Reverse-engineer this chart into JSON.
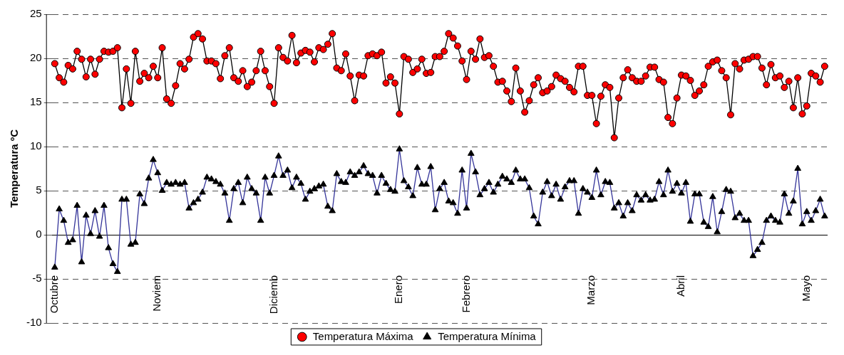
{
  "chart_data": {
    "type": "line",
    "ylabel": "Temperatura ºC",
    "categories": [
      "Octubre",
      null,
      null,
      null,
      null,
      null,
      null,
      null,
      null,
      null,
      null,
      null,
      null,
      null,
      null,
      null,
      null,
      null,
      null,
      null,
      null,
      null,
      null,
      "Noviem",
      null,
      null,
      null,
      null,
      null,
      null,
      null,
      null,
      null,
      null,
      null,
      null,
      null,
      null,
      null,
      null,
      null,
      null,
      null,
      null,
      null,
      null,
      null,
      null,
      null,
      "Diciemb",
      null,
      null,
      null,
      null,
      null,
      null,
      null,
      null,
      null,
      null,
      null,
      null,
      null,
      null,
      null,
      null,
      null,
      null,
      null,
      null,
      null,
      null,
      null,
      null,
      null,
      null,
      null,
      "Enero",
      null,
      null,
      null,
      null,
      null,
      null,
      null,
      null,
      null,
      null,
      null,
      null,
      null,
      null,
      "Febrero",
      null,
      null,
      null,
      null,
      null,
      null,
      null,
      null,
      null,
      null,
      null,
      null,
      null,
      null,
      null,
      null,
      null,
      null,
      null,
      null,
      null,
      null,
      null,
      null,
      null,
      null,
      null,
      "Marzo",
      null,
      null,
      null,
      null,
      null,
      null,
      null,
      null,
      null,
      null,
      null,
      null,
      null,
      null,
      null,
      null,
      null,
      null,
      null,
      "Abril",
      null,
      null,
      null,
      null,
      null,
      null,
      null,
      null,
      null,
      null,
      null,
      null,
      null,
      null,
      null,
      null,
      null,
      null,
      null,
      null,
      null,
      null,
      null,
      null,
      null,
      null,
      null,
      "Mayo",
      null,
      null,
      null,
      null
    ],
    "series": [
      {
        "name": "Temperatura Máxima",
        "color": "#ff0000",
        "marker": "circle",
        "values": [
          19.4,
          17.8,
          17.3,
          19.2,
          18.8,
          20.8,
          19.9,
          17.9,
          19.9,
          18.2,
          19.9,
          20.8,
          20.7,
          20.8,
          21.2,
          14.4,
          18.8,
          14.9,
          20.8,
          17.4,
          18.3,
          17.8,
          19.1,
          17.8,
          21.2,
          15.4,
          14.9,
          16.9,
          19.4,
          18.8,
          19.9,
          22.4,
          22.8,
          22.2,
          19.7,
          19.7,
          19.4,
          17.7,
          20.3,
          21.2,
          17.8,
          17.4,
          18.6,
          16.8,
          17.3,
          18.6,
          20.8,
          18.6,
          16.8,
          14.9,
          21.2,
          20.1,
          19.7,
          22.6,
          19.5,
          20.6,
          20.9,
          20.7,
          19.6,
          21.2,
          21.0,
          21.6,
          22.8,
          18.9,
          18.6,
          20.5,
          18.0,
          15.2,
          18.1,
          18.0,
          20.3,
          20.5,
          20.3,
          20.7,
          17.2,
          17.9,
          17.2,
          13.7,
          20.2,
          19.9,
          18.4,
          18.8,
          19.9,
          18.3,
          18.4,
          20.2,
          20.2,
          20.8,
          22.8,
          22.3,
          21.4,
          19.7,
          17.6,
          20.8,
          19.9,
          22.2,
          20.1,
          20.3,
          19.1,
          17.3,
          17.4,
          16.3,
          15.1,
          18.9,
          16.3,
          13.9,
          15.2,
          17.0,
          17.8,
          16.1,
          16.3,
          16.8,
          18.1,
          17.7,
          17.4,
          16.7,
          16.2,
          19.1,
          19.1,
          15.8,
          15.8,
          12.6,
          15.7,
          17.0,
          16.7,
          11.0,
          15.5,
          17.8,
          18.7,
          17.8,
          17.4,
          17.4,
          18.0,
          19.0,
          19.0,
          17.6,
          17.3,
          13.3,
          12.6,
          15.5,
          18.1,
          18.0,
          17.5,
          15.8,
          16.3,
          17.0,
          19.1,
          19.6,
          19.8,
          18.6,
          17.8,
          13.6,
          19.4,
          18.8,
          19.8,
          19.9,
          20.2,
          20.2,
          18.9,
          17.0,
          19.3,
          17.8,
          18.0,
          16.7,
          17.4,
          14.4,
          17.8,
          13.7,
          14.6,
          18.3,
          18.0,
          17.3,
          19.1
        ]
      },
      {
        "name": "Temperatura Mínima",
        "color": "#000000",
        "marker": "triangle",
        "values": [
          -3.7,
          2.9,
          1.6,
          -0.9,
          -0.6,
          3.3,
          -3.1,
          2.2,
          0.1,
          2.7,
          -0.2,
          3.3,
          -1.5,
          -3.3,
          -4.2,
          4.0,
          4.0,
          -1.1,
          -0.9,
          4.6,
          3.5,
          6.4,
          8.5,
          7.0,
          5.0,
          5.9,
          5.7,
          5.9,
          5.7,
          5.9,
          3.0,
          3.6,
          4.0,
          4.8,
          6.5,
          6.3,
          6.0,
          5.7,
          4.7,
          1.6,
          5.2,
          5.9,
          3.6,
          6.5,
          5.2,
          4.7,
          1.6,
          6.5,
          4.7,
          6.7,
          8.9,
          6.7,
          7.3,
          5.3,
          6.5,
          5.8,
          4.0,
          4.9,
          5.2,
          5.5,
          5.7,
          3.2,
          2.7,
          6.9,
          6.0,
          5.9,
          7.1,
          6.7,
          7.1,
          7.8,
          6.9,
          6.7,
          4.7,
          6.7,
          5.8,
          5.1,
          4.9,
          9.7,
          6.1,
          5.4,
          4.4,
          7.6,
          5.7,
          5.7,
          7.7,
          2.8,
          5.2,
          5.9,
          3.8,
          3.6,
          2.4,
          7.3,
          3.0,
          9.2,
          7.1,
          4.5,
          5.2,
          5.9,
          4.8,
          5.7,
          6.6,
          6.3,
          5.9,
          7.3,
          6.3,
          6.3,
          5.3,
          2.1,
          1.2,
          4.8,
          6.0,
          4.4,
          5.7,
          4.0,
          5.4,
          6.1,
          6.1,
          2.4,
          5.2,
          4.8,
          4.2,
          7.3,
          4.5,
          6.0,
          5.9,
          3.0,
          3.6,
          2.1,
          3.6,
          2.7,
          4.5,
          3.9,
          4.5,
          3.9,
          4.0,
          6.0,
          4.5,
          7.3,
          4.9,
          5.8,
          4.7,
          5.9,
          1.5,
          4.6,
          4.6,
          1.4,
          0.9,
          4.3,
          0.3,
          2.6,
          5.1,
          4.9,
          1.9,
          2.4,
          1.6,
          1.6,
          -2.4,
          -1.7,
          -0.9,
          1.6,
          2.1,
          1.6,
          1.4,
          4.6,
          2.4,
          3.8,
          7.5,
          1.2,
          2.6,
          1.6,
          2.7,
          4.0,
          2.1
        ]
      }
    ],
    "ylim": [
      -10,
      25
    ],
    "yticks": [
      -10,
      -5,
      0,
      5,
      10,
      15,
      20,
      25
    ],
    "grid": "y",
    "legend": "bottom",
    "line_style": "solid"
  }
}
